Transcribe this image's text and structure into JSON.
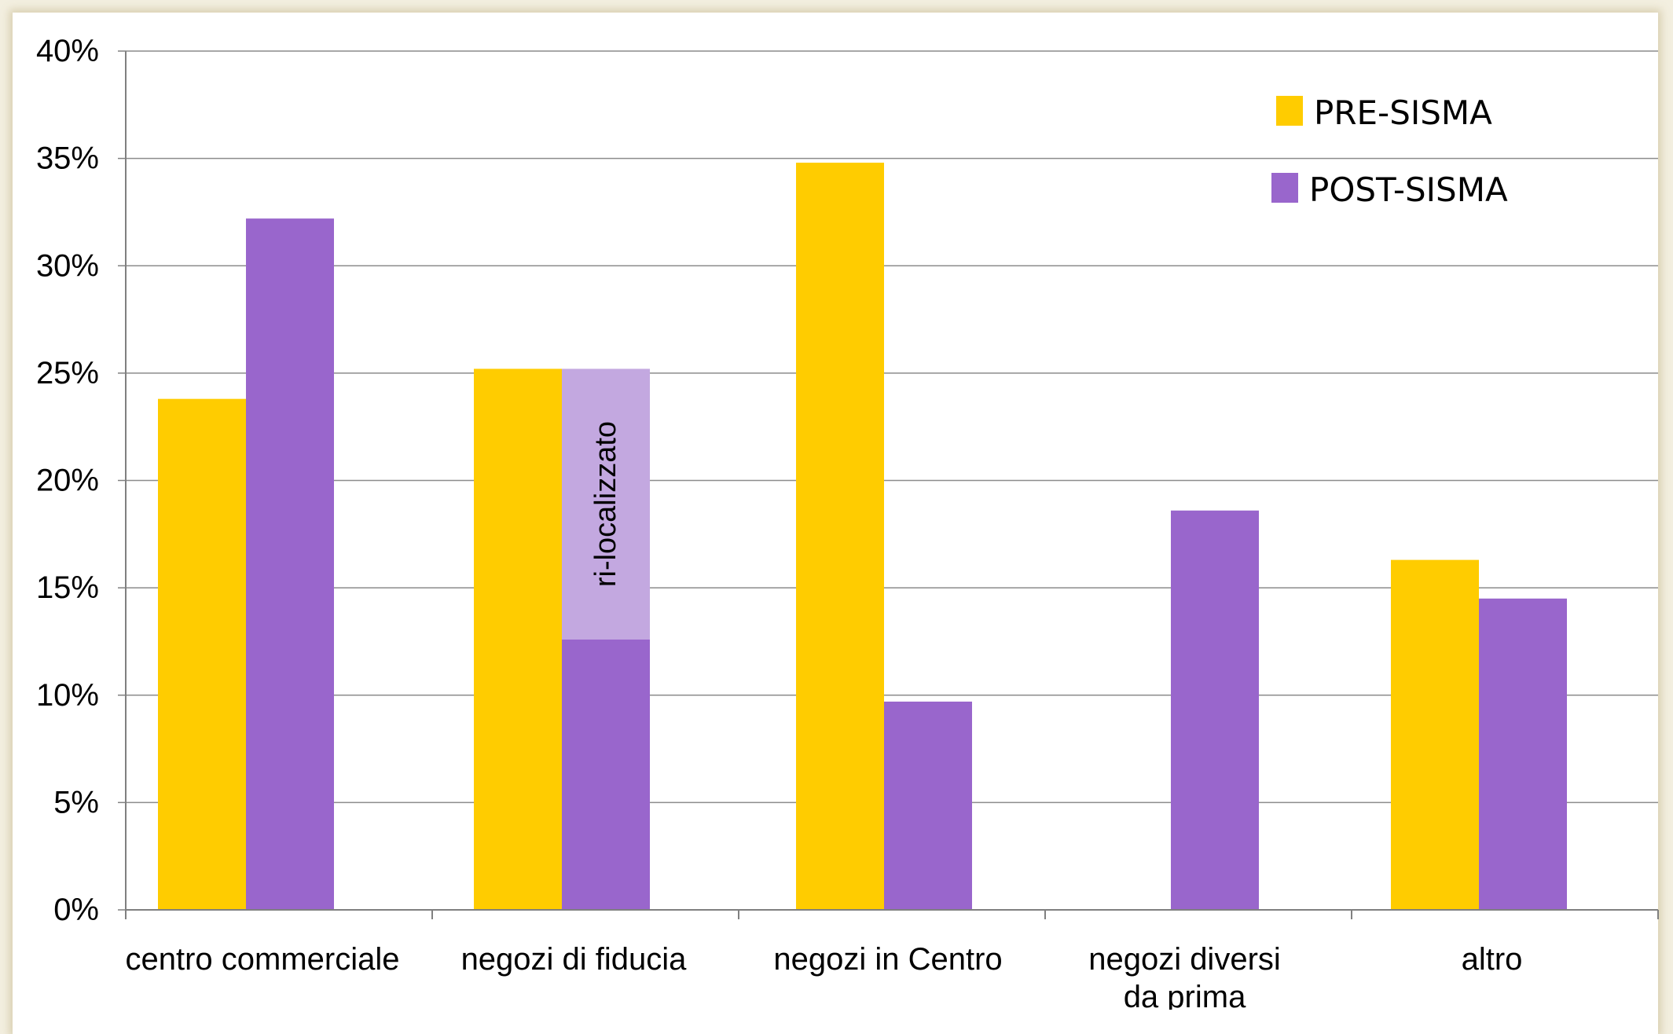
{
  "chart_data": {
    "type": "bar",
    "title": "",
    "xlabel": "",
    "ylabel": "",
    "ylim": [
      0,
      40
    ],
    "y_ticks": [
      "0%",
      "5%",
      "10%",
      "15%",
      "20%",
      "25%",
      "30%",
      "35%",
      "40%"
    ],
    "grid": true,
    "legend_position": "top-right",
    "categories": [
      [
        "centro commerciale"
      ],
      [
        "negozi di fiducia"
      ],
      [
        "negozi in Centro"
      ],
      [
        "negozi diversi",
        "da prima"
      ],
      [
        "altro"
      ]
    ],
    "series": [
      {
        "name": "PRE-SISMA",
        "color": "#ffcc00",
        "values": [
          23.8,
          25.2,
          34.8,
          null,
          16.3
        ]
      },
      {
        "name": "POST-SISMA",
        "color": "#9966cc",
        "values": [
          32.2,
          12.6,
          9.7,
          18.6,
          14.5
        ]
      }
    ],
    "annotation": {
      "text": "ri-localizzato",
      "category_index": 1,
      "series_index": 1,
      "from": 12.6,
      "to": 25.2,
      "color": "#c3a8e0"
    }
  }
}
